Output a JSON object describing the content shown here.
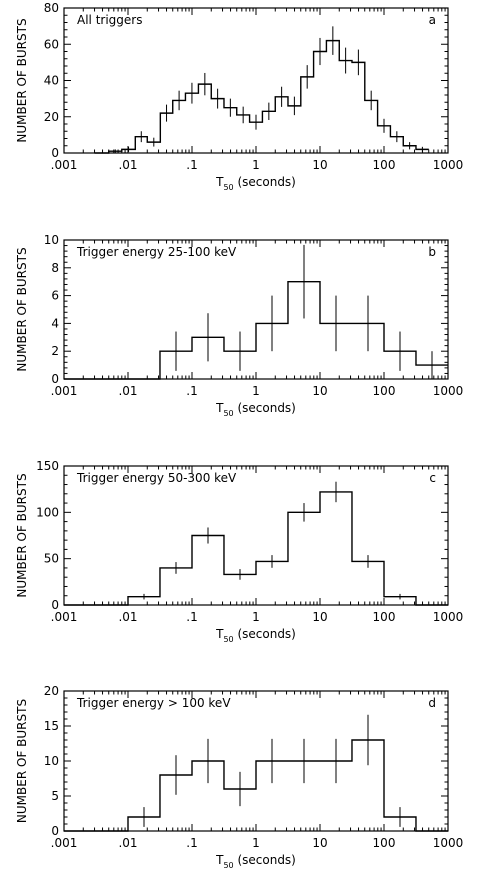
{
  "chart_data": [
    {
      "type": "histogram",
      "title": "All triggers",
      "panel_letter": "a",
      "xlabel_main": "T",
      "xlabel_sub": "50",
      "xlabel_unit": "(seconds)",
      "ylabel": "NUMBER OF BURSTS",
      "xscale": "log",
      "xlim": [
        0.001,
        1000
      ],
      "ylim": [
        0,
        80
      ],
      "x_ticks": [
        0.001,
        0.01,
        0.1,
        1,
        10,
        100,
        1000
      ],
      "x_tick_labels": [
        ".001",
        ".01",
        ".1",
        "1",
        "10",
        "100",
        "1000"
      ],
      "y_ticks": [
        0,
        20,
        40,
        60,
        80
      ],
      "y_tick_labels": [
        "0",
        "20",
        "40",
        "60",
        "80"
      ],
      "bin_edges": [
        0.003,
        0.005,
        0.008,
        0.013,
        0.02,
        0.032,
        0.05,
        0.079,
        0.126,
        0.2,
        0.316,
        0.5,
        0.794,
        1.26,
        2,
        3.16,
        5.01,
        7.94,
        12.6,
        20,
        31.6,
        50.1,
        79.4,
        126,
        200,
        316,
        501
      ],
      "counts": [
        0,
        1,
        2,
        9,
        6,
        22,
        29,
        33,
        38,
        30,
        25,
        21,
        17,
        23,
        31,
        26,
        42,
        56,
        62,
        51,
        50,
        29,
        15,
        9,
        4,
        2
      ],
      "error_bars": true
    },
    {
      "type": "histogram",
      "title": "Trigger energy 25-100 keV",
      "panel_letter": "b",
      "xlabel_main": "T",
      "xlabel_sub": "50",
      "xlabel_unit": "(seconds)",
      "ylabel": "NUMBER OF BURSTS",
      "xscale": "log",
      "xlim": [
        0.001,
        1000
      ],
      "ylim": [
        0,
        10
      ],
      "x_ticks": [
        0.001,
        0.01,
        0.1,
        1,
        10,
        100,
        1000
      ],
      "x_tick_labels": [
        ".001",
        ".01",
        ".1",
        "1",
        "10",
        "100",
        "1000"
      ],
      "y_ticks": [
        0,
        2,
        4,
        6,
        8,
        10
      ],
      "y_tick_labels": [
        "0",
        "2",
        "4",
        "6",
        "8",
        "10"
      ],
      "bin_edges": [
        0.001,
        0.0316,
        0.1,
        0.316,
        1,
        3.16,
        10,
        31.6,
        100,
        316,
        1000
      ],
      "counts": [
        0,
        2,
        3,
        2,
        4,
        7,
        4,
        4,
        2,
        1
      ],
      "error_bars": true
    },
    {
      "type": "histogram",
      "title": "Trigger energy 50-300 keV",
      "panel_letter": "c",
      "xlabel_main": "T",
      "xlabel_sub": "50",
      "xlabel_unit": "(seconds)",
      "ylabel": "NUMBER OF BURSTS",
      "xscale": "log",
      "xlim": [
        0.001,
        1000
      ],
      "ylim": [
        0,
        150
      ],
      "x_ticks": [
        0.001,
        0.01,
        0.1,
        1,
        10,
        100,
        1000
      ],
      "x_tick_labels": [
        ".001",
        ".01",
        ".1",
        "1",
        "10",
        "100",
        "1000"
      ],
      "y_ticks": [
        0,
        50,
        100,
        150
      ],
      "y_tick_labels": [
        "0",
        "50",
        "100",
        "150"
      ],
      "bin_edges": [
        0.001,
        0.01,
        0.0316,
        0.1,
        0.316,
        1,
        3.16,
        10,
        31.6,
        100,
        316,
        1000
      ],
      "counts": [
        0,
        9,
        40,
        75,
        33,
        47,
        100,
        122,
        47,
        9,
        0
      ],
      "error_bars": true
    },
    {
      "type": "histogram",
      "title": "Trigger energy > 100 keV",
      "panel_letter": "d",
      "xlabel_main": "T",
      "xlabel_sub": "50",
      "xlabel_unit": "(seconds)",
      "ylabel": "NUMBER OF BURSTS",
      "xscale": "log",
      "xlim": [
        0.001,
        1000
      ],
      "ylim": [
        0,
        20
      ],
      "x_ticks": [
        0.001,
        0.01,
        0.1,
        1,
        10,
        100,
        1000
      ],
      "x_tick_labels": [
        ".001",
        ".01",
        ".1",
        "1",
        "10",
        "100",
        "1000"
      ],
      "y_ticks": [
        0,
        5,
        10,
        15,
        20
      ],
      "y_tick_labels": [
        "0",
        "5",
        "10",
        "15",
        "20"
      ],
      "bin_edges": [
        0.001,
        0.01,
        0.0316,
        0.1,
        0.316,
        1,
        3.16,
        10,
        31.6,
        100,
        316,
        1000
      ],
      "counts": [
        0,
        2,
        8,
        10,
        6,
        10,
        10,
        10,
        13,
        2,
        0
      ],
      "error_bars": true
    }
  ]
}
